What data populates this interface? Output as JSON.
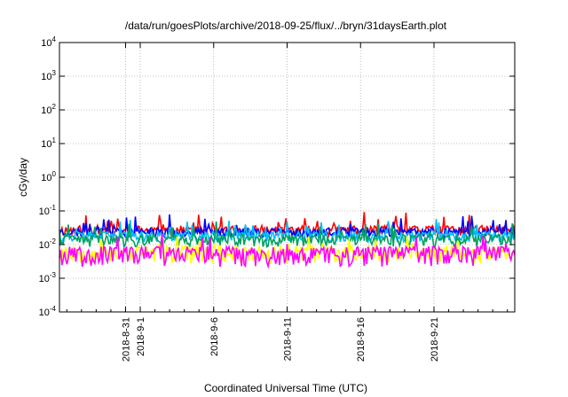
{
  "chart_data": {
    "type": "line",
    "title": "/data/run/goesPlots/archive/2018-09-25/flux/../bryn/31daysEarth.plot",
    "xlabel": "Coordinated Universal Time (UTC)",
    "ylabel": "cGy/day",
    "yscale": "log",
    "ylim": [
      0.0001,
      10000
    ],
    "xlim": [
      "2018-08-26T12:00",
      "2018-09-26T12:00"
    ],
    "grid": true,
    "legend": "none",
    "y_ticks": [
      {
        "base": "10",
        "exp": "-4",
        "value": 0.0001
      },
      {
        "base": "10",
        "exp": "-3",
        "value": 0.001
      },
      {
        "base": "10",
        "exp": "-2",
        "value": 0.01
      },
      {
        "base": "10",
        "exp": "-1",
        "value": 0.1
      },
      {
        "base": "10",
        "exp": "0",
        "value": 1
      },
      {
        "base": "10",
        "exp": "1",
        "value": 10
      },
      {
        "base": "10",
        "exp": "2",
        "value": 100
      },
      {
        "base": "10",
        "exp": "3",
        "value": 1000
      },
      {
        "base": "10",
        "exp": "4",
        "value": 10000
      }
    ],
    "x_ticks": [
      {
        "label": "2018-8-31",
        "date": "2018-08-31"
      },
      {
        "label": "2018-9-1",
        "date": "2018-09-01"
      },
      {
        "label": "2018-9-6",
        "date": "2018-09-06"
      },
      {
        "label": "2018-9-11",
        "date": "2018-09-11"
      },
      {
        "label": "2018-9-16",
        "date": "2018-09-16"
      },
      {
        "label": "2018-9-21",
        "date": "2018-09-21"
      }
    ],
    "series": [
      {
        "color": "#ff0000",
        "base": 0.027,
        "jitter": 0.35,
        "seed": 11
      },
      {
        "color": "#0000ff",
        "base": 0.024,
        "jitter": 0.3,
        "seed": 23
      },
      {
        "color": "#00bfff",
        "base": 0.018,
        "jitter": 0.35,
        "seed": 37
      },
      {
        "color": "#00a060",
        "base": 0.014,
        "jitter": 0.4,
        "seed": 41
      },
      {
        "color": "#ffff00",
        "base": 0.006,
        "jitter": 0.55,
        "seed": 53
      },
      {
        "color": "#ff00ff",
        "base": 0.0055,
        "jitter": 0.6,
        "seed": 67
      }
    ]
  }
}
